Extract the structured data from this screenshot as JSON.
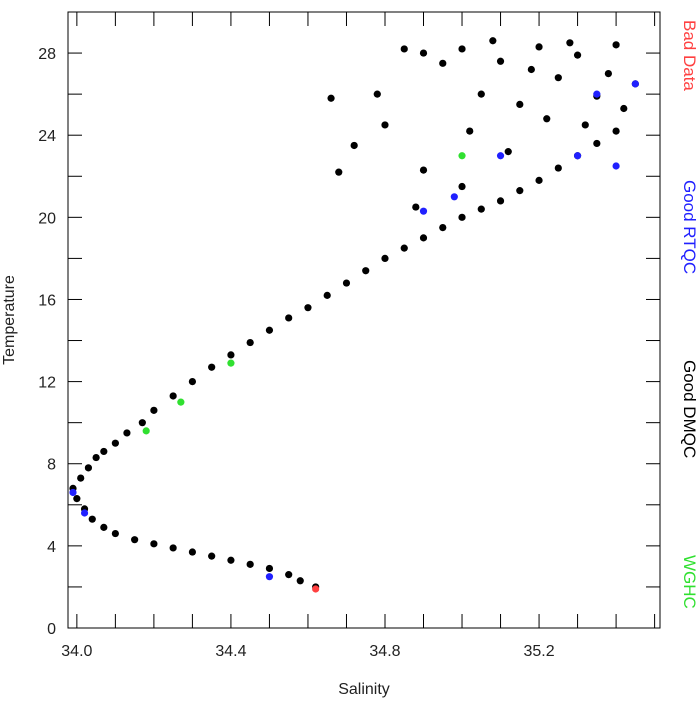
{
  "chart_data": {
    "type": "scatter",
    "x_label": "Salinity",
    "y_label": "Temperature",
    "xlim": [
      33.977,
      35.514
    ],
    "ylim": [
      0,
      30
    ],
    "xticks": [
      {
        "value": 34.0,
        "label": "34.0"
      },
      {
        "value": 34.4,
        "label": "34.4"
      },
      {
        "value": 34.8,
        "label": "34.8"
      },
      {
        "value": 35.2,
        "label": "35.2"
      }
    ],
    "xminorticks": [
      34.1,
      34.2,
      34.3,
      34.5,
      34.6,
      34.7,
      34.9,
      35.0,
      35.1,
      35.3,
      35.4,
      35.5
    ],
    "yticks": [
      0,
      4,
      8,
      12,
      16,
      20,
      24,
      28
    ],
    "yminorticks": [
      2,
      6,
      10,
      14,
      18,
      22,
      26,
      30
    ],
    "legend_position": "right",
    "series": [
      {
        "name": "Bad Data",
        "color": "#ff4040",
        "x": [
          34.62
        ],
        "values": [
          1.9
        ]
      },
      {
        "name": "Good RTQC",
        "color": "#2020ff",
        "x": [
          35.4,
          35.35,
          35.45,
          35.3,
          35.1,
          34.98,
          34.9,
          34.02,
          33.99,
          34.5
        ],
        "values": [
          22.5,
          26.0,
          26.5,
          23.0,
          23.0,
          21.0,
          20.3,
          5.6,
          6.6,
          2.5
        ]
      },
      {
        "name": "Good DMQC",
        "color": "#000000",
        "x": [
          34.62,
          34.58,
          34.55,
          34.5,
          34.45,
          34.4,
          34.35,
          34.3,
          34.25,
          34.2,
          34.15,
          34.1,
          34.07,
          34.04,
          34.02,
          34.0,
          33.99,
          34.01,
          34.03,
          34.05,
          34.07,
          34.1,
          34.13,
          34.17,
          34.2,
          34.25,
          34.3,
          34.35,
          34.4,
          34.45,
          34.5,
          34.55,
          34.6,
          34.65,
          34.7,
          34.75,
          34.8,
          34.85,
          34.9,
          34.95,
          35.0,
          35.05,
          35.1,
          35.15,
          35.2,
          35.25,
          35.3,
          35.35,
          35.4,
          35.0,
          35.1,
          35.2,
          35.3,
          35.4,
          35.45,
          34.95,
          35.05,
          35.15,
          35.25,
          35.35,
          34.9,
          34.85,
          34.78,
          34.8,
          35.02,
          35.12,
          35.22,
          35.32,
          35.42,
          34.72,
          34.66,
          34.68,
          35.08,
          35.18,
          35.28,
          35.38,
          34.9,
          35.0,
          34.88
        ],
        "values": [
          2.0,
          2.3,
          2.6,
          2.9,
          3.1,
          3.3,
          3.5,
          3.7,
          3.9,
          4.1,
          4.3,
          4.6,
          4.9,
          5.3,
          5.8,
          6.3,
          6.8,
          7.3,
          7.8,
          8.3,
          8.6,
          9.0,
          9.5,
          10.0,
          10.6,
          11.3,
          12.0,
          12.7,
          13.3,
          13.9,
          14.5,
          15.1,
          15.6,
          16.2,
          16.8,
          17.4,
          18.0,
          18.5,
          19.0,
          19.5,
          20.0,
          20.4,
          20.8,
          21.3,
          21.8,
          22.4,
          23.0,
          23.6,
          24.2,
          28.2,
          27.6,
          28.3,
          27.9,
          28.4,
          26.5,
          27.5,
          26.0,
          25.5,
          26.8,
          25.9,
          28.0,
          28.2,
          26.0,
          24.5,
          24.2,
          23.2,
          24.8,
          24.5,
          25.3,
          23.5,
          25.8,
          22.2,
          28.6,
          27.2,
          28.5,
          27.0,
          22.3,
          21.5,
          20.5
        ]
      },
      {
        "name": "WGHC",
        "color": "#30e030",
        "x": [
          34.18,
          34.27,
          35.0,
          34.4
        ],
        "values": [
          9.6,
          11.0,
          23.0,
          12.9
        ]
      }
    ]
  }
}
